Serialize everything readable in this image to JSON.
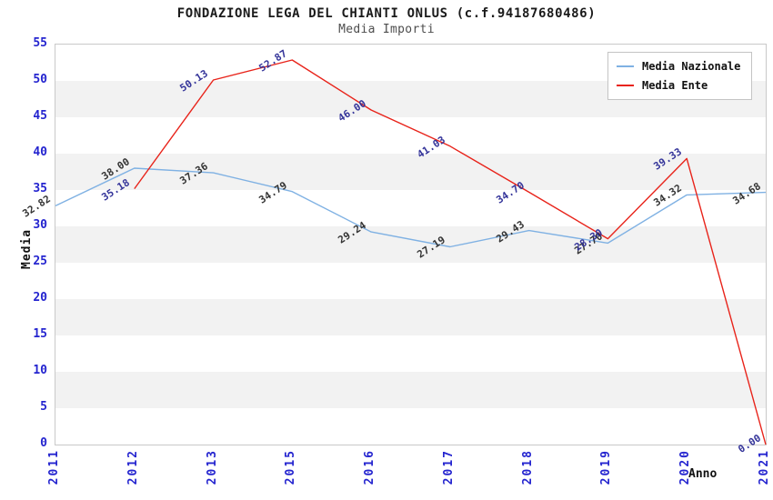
{
  "chart_data": {
    "type": "line",
    "title": "FONDAZIONE LEGA DEL CHIANTI ONLUS (c.f.94187680486)",
    "subtitle": "Media Importi",
    "xlabel": "Anno",
    "ylabel": "Media",
    "ylim": [
      0,
      55
    ],
    "ytick_step": 5,
    "grid": "horizontal-bands",
    "band_color": "#f2f2f2",
    "tick_color": "#2424cf",
    "legend_position": "top-right",
    "categories": [
      "2011",
      "2012",
      "2013",
      "2015",
      "2016",
      "2017",
      "2018",
      "2019",
      "2020",
      "2021"
    ],
    "series": [
      {
        "name": "Media Nazionale",
        "color": "#7fb1e3",
        "label_color": "#333333",
        "values": [
          32.82,
          38.0,
          37.36,
          34.79,
          29.24,
          27.19,
          29.43,
          27.7,
          34.32,
          34.68
        ]
      },
      {
        "name": "Media Ente",
        "color": "#e8231a",
        "label_color": "#333399",
        "values": [
          null,
          35.18,
          50.13,
          52.87,
          46.0,
          41.03,
          34.7,
          28.3,
          39.33,
          0.0
        ]
      }
    ]
  }
}
